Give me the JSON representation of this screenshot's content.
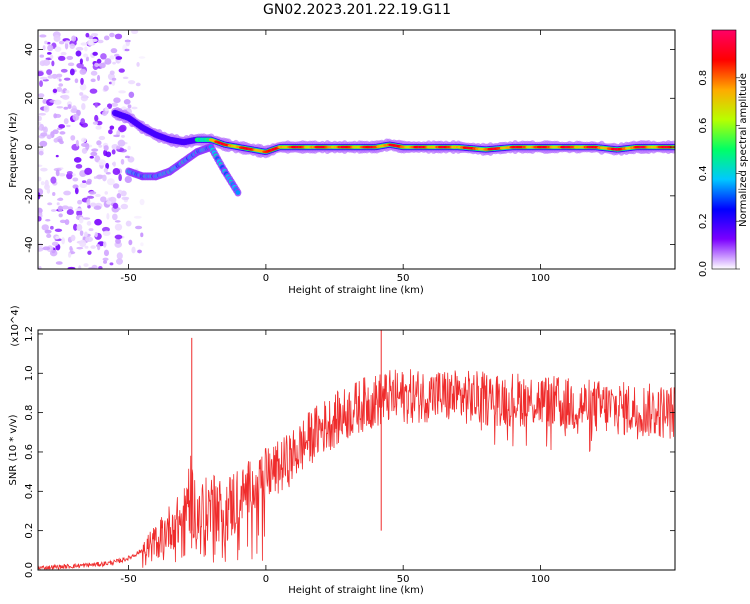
{
  "title": "GN02.2023.201.22.19.G11",
  "chart_data": [
    {
      "type": "heatmap",
      "xlabel": "Height of straight line (km)",
      "ylabel": "Frequency (Hz)",
      "xlim": [
        -83,
        149
      ],
      "ylim": [
        -50,
        48
      ],
      "x_ticks": [
        -50,
        0,
        50,
        100
      ],
      "y_ticks": [
        -40,
        -20,
        0,
        20,
        40
      ],
      "grid": false,
      "colorbar": {
        "label": "Normalized spectral amplitude",
        "range": [
          0,
          1
        ],
        "ticks": [
          "0.0",
          "0.2",
          "0.4",
          "0.6",
          "0.8"
        ],
        "colors": [
          "#ffffff",
          "#7b00ff",
          "#0000ff",
          "#00c8ff",
          "#00ff66",
          "#b8ff00",
          "#ffaa00",
          "#ff0000",
          "#ff0066"
        ]
      },
      "ridge": {
        "x": [
          -55,
          -50,
          -45,
          -40,
          -35,
          -30,
          -25,
          -20,
          -15,
          -10,
          -5,
          0,
          5,
          10,
          20,
          30,
          40,
          45,
          50,
          60,
          70,
          80,
          90,
          100,
          110,
          120,
          128,
          135,
          149
        ],
        "y": [
          14,
          12,
          8,
          5,
          3,
          2,
          3,
          3,
          1,
          0,
          -1,
          -2,
          0,
          0,
          0,
          0,
          0,
          1,
          0,
          0,
          0,
          -1,
          0,
          0,
          0,
          0,
          -1,
          0,
          0
        ]
      },
      "lower_branch": {
        "x": [
          -50,
          -45,
          -40,
          -35,
          -30,
          -25,
          -20,
          -15,
          -10
        ],
        "y": [
          -10,
          -12,
          -12,
          -10,
          -6,
          -2,
          0,
          -10,
          -19
        ]
      }
    },
    {
      "type": "line",
      "xlabel": "Height of straight line (km)",
      "ylabel": "SNR (10 * v/v)",
      "y_exponent": "(x10^4)",
      "xlim": [
        -83,
        149
      ],
      "ylim": [
        0.0,
        1.22
      ],
      "x_ticks": [
        -50,
        0,
        50,
        100
      ],
      "y_ticks": [
        "0.0",
        "0.2",
        "0.4",
        "0.6",
        "0.8",
        "1.0",
        "1.2"
      ],
      "grid": false,
      "color": "#ef2c2c",
      "series": [
        {
          "x": [
            -83,
            -70,
            -60,
            -55,
            -50,
            -45,
            -40,
            -35,
            -30,
            -28,
            -25,
            -20,
            -15,
            -10,
            -5,
            0,
            5,
            10,
            15,
            20,
            25,
            30,
            35,
            40,
            45,
            50,
            60,
            70,
            80,
            90,
            100,
            110,
            120,
            130,
            140,
            149
          ],
          "values": [
            0.01,
            0.02,
            0.03,
            0.04,
            0.06,
            0.1,
            0.15,
            0.22,
            0.26,
            0.4,
            0.28,
            0.32,
            0.3,
            0.36,
            0.44,
            0.48,
            0.52,
            0.58,
            0.66,
            0.72,
            0.76,
            0.8,
            0.84,
            0.86,
            0.88,
            0.88,
            0.89,
            0.88,
            0.87,
            0.87,
            0.86,
            0.84,
            0.83,
            0.82,
            0.81,
            0.8
          ]
        }
      ],
      "spikes": [
        {
          "x": -27,
          "y": 1.18
        },
        {
          "x": 42,
          "y": 1.22
        }
      ]
    }
  ]
}
